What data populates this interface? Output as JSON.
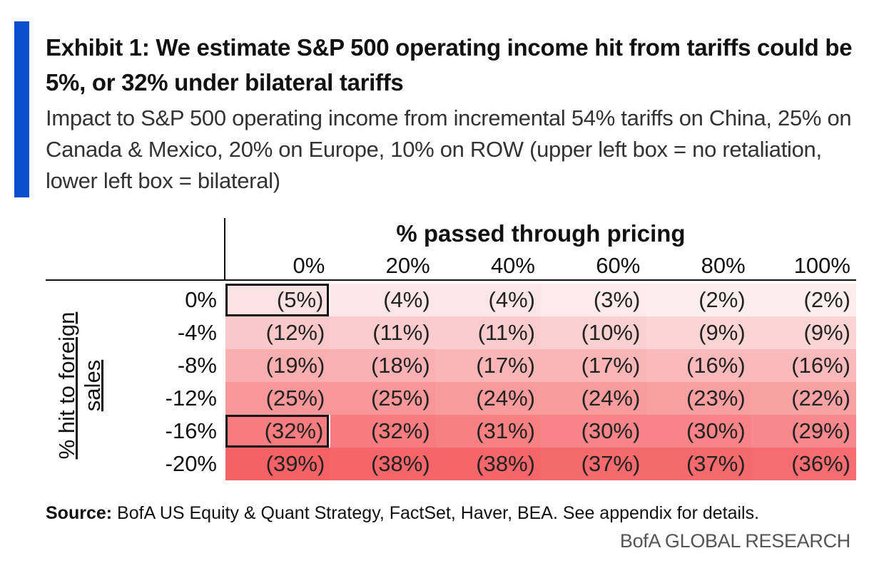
{
  "colors": {
    "accent": "#0b4fcf",
    "cell_low": "#fdeeee",
    "cell_high": "#f56266"
  },
  "title": "Exhibit 1: We estimate S&P 500 operating income hit from tariffs could be 5%, or 32% under bilateral tariffs",
  "subtitle": "Impact to S&P 500 operating income from incremental 54% tariffs on China, 25% on Canada & Mexico, 20% on Europe, 10% on ROW (upper left box = no retaliation, lower left box = bilateral)",
  "source_label": "Source:",
  "source_text": "BofA US Equity & Quant Strategy, FactSet, Haver, BEA. See appendix for details.",
  "brand": "BofA GLOBAL RESEARCH",
  "chart_data": {
    "type": "heatmap",
    "x_title": "% passed through pricing",
    "y_title": "% hit to foreign sales",
    "x": [
      "0%",
      "20%",
      "40%",
      "60%",
      "80%",
      "100%"
    ],
    "y": [
      "0%",
      "-4%",
      "-8%",
      "-12%",
      "-16%",
      "-20%"
    ],
    "values": [
      [
        -5,
        -4,
        -4,
        -3,
        -2,
        -2
      ],
      [
        -12,
        -11,
        -11,
        -10,
        -9,
        -9
      ],
      [
        -19,
        -18,
        -17,
        -17,
        -16,
        -16
      ],
      [
        -25,
        -25,
        -24,
        -24,
        -23,
        -22
      ],
      [
        -32,
        -32,
        -31,
        -30,
        -30,
        -29
      ],
      [
        -39,
        -38,
        -38,
        -37,
        -37,
        -36
      ]
    ],
    "labels": [
      [
        "(5%)",
        "(4%)",
        "(4%)",
        "(3%)",
        "(2%)",
        "(2%)"
      ],
      [
        "(12%)",
        "(11%)",
        "(11%)",
        "(10%)",
        "(9%)",
        "(9%)"
      ],
      [
        "(19%)",
        "(18%)",
        "(17%)",
        "(17%)",
        "(16%)",
        "(16%)"
      ],
      [
        "(25%)",
        "(25%)",
        "(24%)",
        "(24%)",
        "(23%)",
        "(22%)"
      ],
      [
        "(32%)",
        "(32%)",
        "(31%)",
        "(30%)",
        "(30%)",
        "(29%)"
      ],
      [
        "(39%)",
        "(38%)",
        "(38%)",
        "(37%)",
        "(37%)",
        "(36%)"
      ]
    ],
    "highlighted_cells": [
      [
        0,
        0
      ],
      [
        4,
        0
      ]
    ]
  }
}
